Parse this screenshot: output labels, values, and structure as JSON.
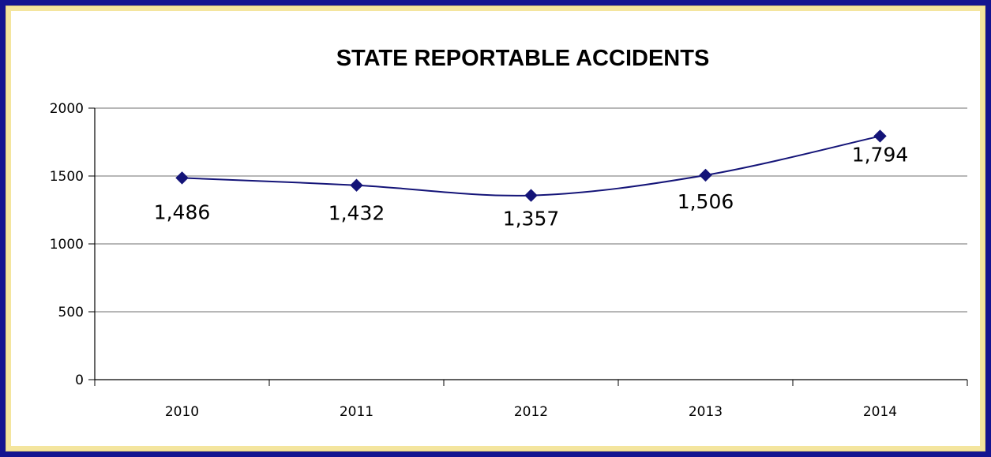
{
  "chart_data": {
    "type": "line",
    "title": "STATE REPORTABLE ACCIDENTS",
    "xlabel": "",
    "ylabel": "",
    "categories": [
      "2010",
      "2011",
      "2012",
      "2013",
      "2014"
    ],
    "series": [
      {
        "values": [
          1486,
          1432,
          1357,
          1506,
          1794
        ],
        "data_labels": [
          "1,486",
          "1,432",
          "1,357",
          "1,506",
          "1,794"
        ],
        "color": "#141478"
      }
    ],
    "ylim": [
      0,
      2000
    ],
    "yticks": [
      "0",
      "500",
      "1000",
      "1500",
      "2000"
    ],
    "grid": true,
    "legend": "none",
    "smooth": true,
    "marker": "diamond"
  },
  "colors": {
    "frame_outer": "#141490",
    "frame_gold": "#f4e59e",
    "line": "#141478",
    "grid": "#8c8c8c"
  }
}
